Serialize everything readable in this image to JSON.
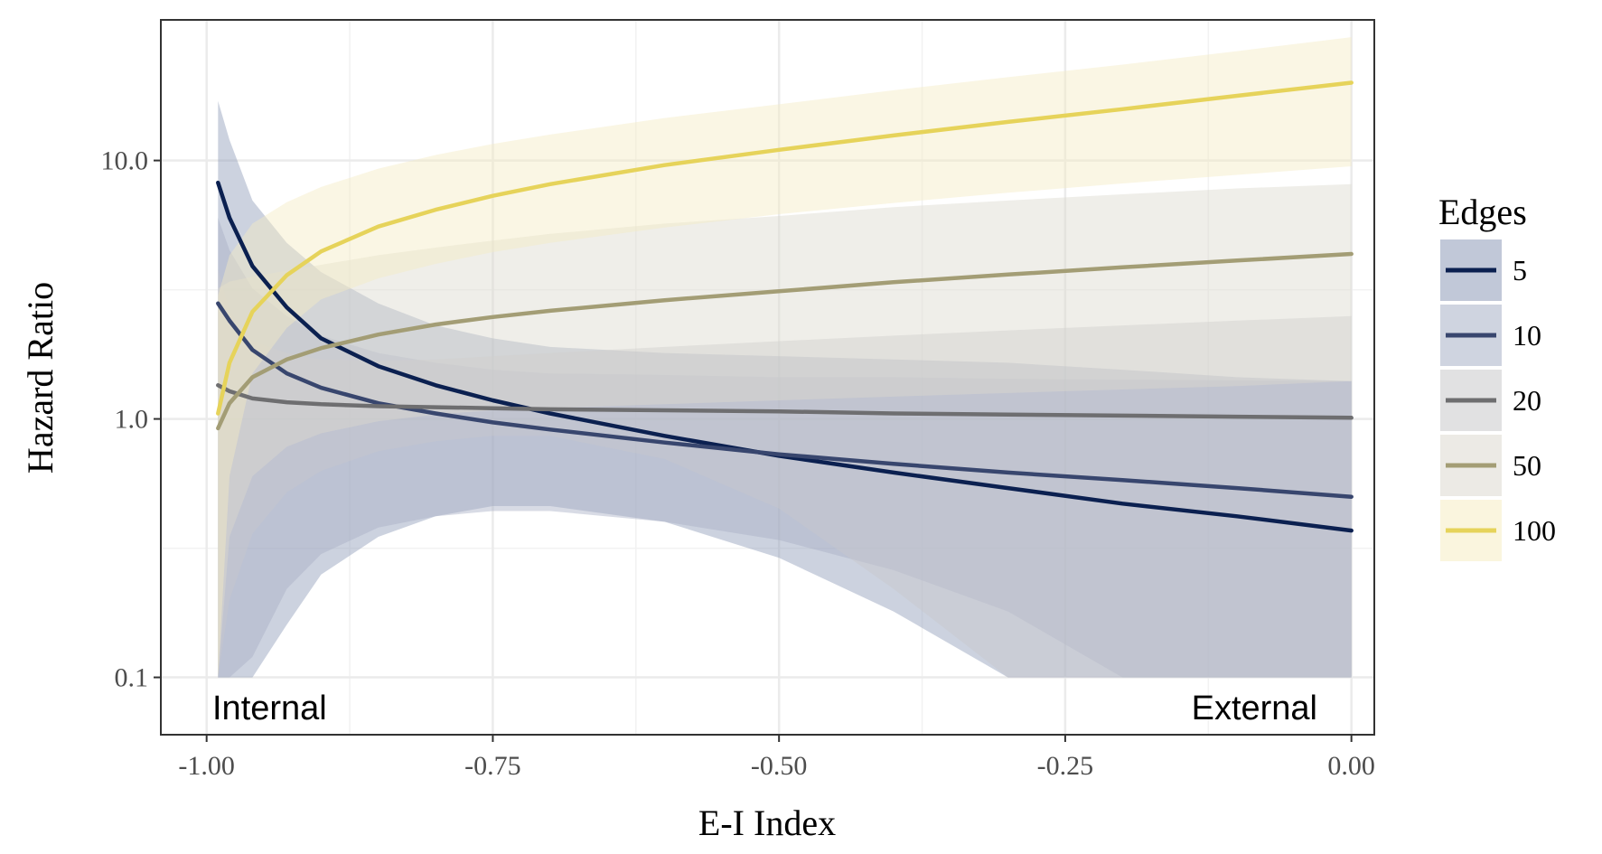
{
  "chart_data": {
    "type": "line",
    "title": "",
    "xlabel": "E-I Index",
    "ylabel": "Hazard Ratio",
    "xlim": [
      -1.04,
      0.02
    ],
    "ylim": [
      0.06,
      35
    ],
    "y_scale": "log",
    "x_ticks": [
      -1.0,
      -0.75,
      -0.5,
      -0.25,
      0.0
    ],
    "x_tick_labels": [
      "-1.00",
      "-0.75",
      "-0.50",
      "-0.25",
      "0.00"
    ],
    "y_ticks": [
      0.1,
      1.0,
      10.0
    ],
    "y_tick_labels": [
      "0.1",
      "1.0",
      "10.0"
    ],
    "grid": true,
    "legend": {
      "title": "Edges",
      "position": "right",
      "entries": [
        "5",
        "10",
        "20",
        "50",
        "100"
      ]
    },
    "annotations": [
      {
        "text": "Internal",
        "position": "bottom-left"
      },
      {
        "text": "External",
        "position": "bottom-right"
      }
    ],
    "x": [
      -0.99,
      -0.98,
      -0.96,
      -0.93,
      -0.9,
      -0.85,
      -0.8,
      -0.75,
      -0.7,
      -0.6,
      -0.5,
      -0.4,
      -0.3,
      -0.2,
      -0.1,
      0.0
    ],
    "series": [
      {
        "name": "5",
        "color": "#0b2050",
        "band_color": "#8e9bb8",
        "values": [
          8.2,
          6.0,
          3.9,
          2.7,
          2.05,
          1.6,
          1.35,
          1.18,
          1.05,
          0.86,
          0.72,
          0.62,
          0.54,
          0.47,
          0.42,
          0.37
        ],
        "lower": [
          0.1,
          0.1,
          0.1,
          0.16,
          0.25,
          0.35,
          0.42,
          0.46,
          0.46,
          0.4,
          0.29,
          0.18,
          0.1,
          0.1,
          0.1,
          0.1
        ],
        "upper": [
          17.0,
          12.0,
          7.0,
          4.8,
          3.7,
          2.8,
          2.3,
          2.05,
          1.9,
          1.8,
          1.75,
          1.7,
          1.65,
          1.55,
          1.45,
          1.4
        ]
      },
      {
        "name": "10",
        "color": "#38466e",
        "band_color": "#a8b0c6",
        "values": [
          2.8,
          2.4,
          1.85,
          1.5,
          1.32,
          1.15,
          1.05,
          0.97,
          0.91,
          0.81,
          0.73,
          0.67,
          0.62,
          0.58,
          0.54,
          0.5
        ],
        "lower": [
          0.1,
          0.1,
          0.12,
          0.22,
          0.3,
          0.38,
          0.42,
          0.44,
          0.44,
          0.4,
          0.34,
          0.26,
          0.18,
          0.1,
          0.1,
          0.1
        ],
        "upper": [
          6.0,
          4.5,
          3.2,
          2.5,
          2.1,
          1.8,
          1.65,
          1.55,
          1.5,
          1.48,
          1.45,
          1.45,
          1.43,
          1.42,
          1.41,
          1.4
        ]
      },
      {
        "name": "20",
        "color": "#6e6e70",
        "band_color": "#c8c8cb",
        "values": [
          1.35,
          1.28,
          1.2,
          1.16,
          1.14,
          1.12,
          1.11,
          1.1,
          1.09,
          1.08,
          1.07,
          1.05,
          1.04,
          1.03,
          1.02,
          1.01
        ],
        "lower": [
          0.1,
          0.2,
          0.36,
          0.52,
          0.63,
          0.75,
          0.82,
          0.86,
          0.86,
          0.7,
          0.45,
          0.22,
          0.1,
          0.1,
          0.1,
          0.1
        ],
        "upper": [
          3.8,
          2.6,
          2.0,
          1.8,
          1.7,
          1.68,
          1.7,
          1.75,
          1.8,
          1.9,
          2.0,
          2.1,
          2.2,
          2.3,
          2.4,
          2.5
        ]
      },
      {
        "name": "50",
        "color": "#a39d75",
        "band_color": "#dcd9cf",
        "values": [
          0.92,
          1.15,
          1.45,
          1.7,
          1.88,
          2.12,
          2.32,
          2.48,
          2.62,
          2.88,
          3.12,
          3.38,
          3.62,
          3.86,
          4.1,
          4.35
        ],
        "lower": [
          0.1,
          0.35,
          0.6,
          0.78,
          0.88,
          0.98,
          1.04,
          1.08,
          1.1,
          1.14,
          1.18,
          1.22,
          1.26,
          1.3,
          1.34,
          1.4
        ],
        "upper": [
          3.2,
          3.4,
          3.55,
          3.75,
          3.95,
          4.3,
          4.6,
          4.9,
          5.2,
          5.7,
          6.1,
          6.6,
          7.0,
          7.4,
          7.8,
          8.1
        ]
      },
      {
        "name": "100",
        "color": "#e6d35a",
        "band_color": "#f5ecc3",
        "values": [
          1.05,
          1.65,
          2.6,
          3.6,
          4.45,
          5.55,
          6.45,
          7.3,
          8.1,
          9.6,
          11.0,
          12.5,
          14.1,
          15.8,
          17.8,
          20.0
        ],
        "lower": [
          0.1,
          0.6,
          1.5,
          2.25,
          2.9,
          3.5,
          3.98,
          4.42,
          4.8,
          5.5,
          6.2,
          6.85,
          7.5,
          8.15,
          8.8,
          9.5
        ],
        "upper": [
          3.0,
          4.3,
          5.7,
          6.9,
          7.9,
          9.3,
          10.5,
          11.6,
          12.6,
          14.6,
          16.5,
          18.7,
          21.0,
          23.5,
          26.5,
          30.0
        ]
      }
    ]
  }
}
